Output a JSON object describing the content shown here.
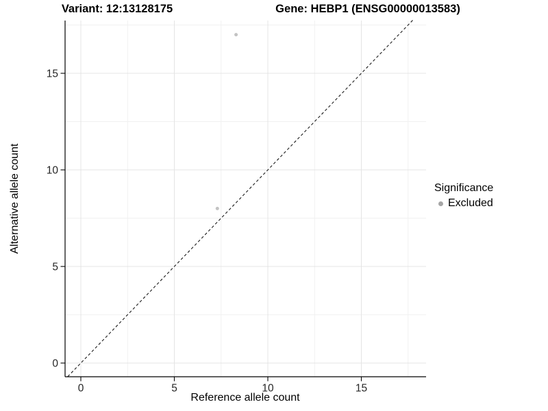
{
  "titles": {
    "variant": "Variant: 12:13128175",
    "gene": "Gene: HEBP1 (ENSG00000013583)"
  },
  "legend": {
    "title": "Significance",
    "items": [
      {
        "label": "Excluded",
        "marker_color": "#a6a6a6"
      }
    ]
  },
  "colors": {
    "background": "#ffffff",
    "grid_major": "#e4e4e4",
    "grid_minor": "#f1f1f1",
    "axis_line": "#000000",
    "tick_label": "#262626",
    "reference_line": "#1a1a1a",
    "point": "#c3c3c3"
  },
  "chart_data": {
    "type": "scatter",
    "title": "Variant: 12:13128175   |   Gene: HEBP1 (ENSG00000013583)",
    "xlabel": "Reference allele count",
    "ylabel": "Alternative allele count",
    "xlim": [
      -0.85,
      18.45
    ],
    "ylim": [
      -0.7,
      17.75
    ],
    "x_ticks": [
      0,
      5,
      10,
      15
    ],
    "y_ticks": [
      0,
      5,
      10,
      15
    ],
    "x_minor_ticks": [
      2.5,
      7.5,
      12.5,
      17.5
    ],
    "y_minor_ticks": [
      2.5,
      7.5,
      12.5,
      17.5
    ],
    "grid": true,
    "legend_position": "right",
    "series": [
      {
        "name": "Excluded",
        "color": "#c3c3c3",
        "points": [
          {
            "x": 8.3,
            "y": 17
          },
          {
            "x": 7.3,
            "y": 8
          }
        ]
      }
    ],
    "reference_line": {
      "kind": "identity",
      "style": "dashed"
    }
  }
}
